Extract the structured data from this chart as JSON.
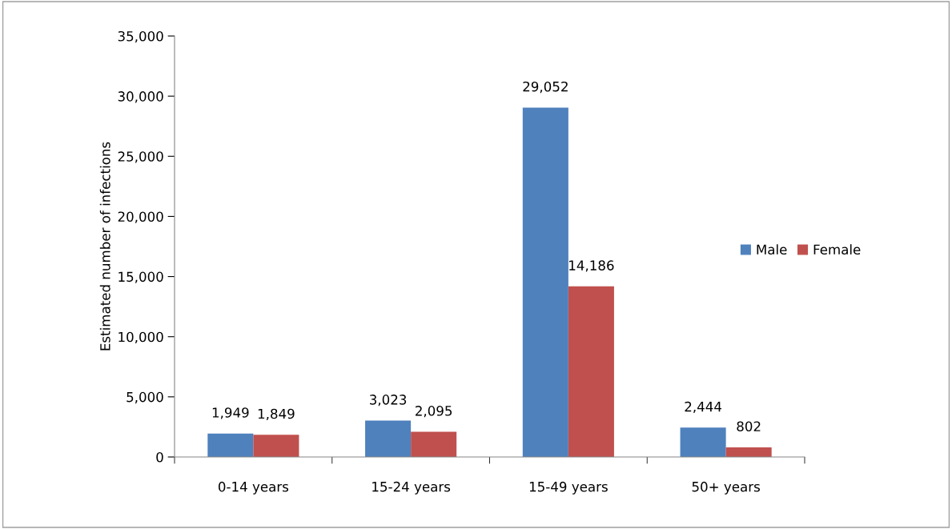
{
  "chart_data": {
    "type": "bar",
    "ylabel": "Estimated number of infections",
    "categories": [
      "0-14 years",
      "15-24 years",
      "15-49 years",
      "50+ years"
    ],
    "series": [
      {
        "name": "Male",
        "color": "#4f81bd",
        "values": [
          1949,
          3023,
          29052,
          2444
        ],
        "value_labels": [
          "1,949",
          "3,023",
          "29,052",
          "2,444"
        ]
      },
      {
        "name": "Female",
        "color": "#c0504d",
        "values": [
          1849,
          2095,
          14186,
          802
        ],
        "value_labels": [
          "1,849",
          "2,095",
          "14,186",
          "802"
        ]
      }
    ],
    "ylim": [
      0,
      35000
    ],
    "yticks": [
      0,
      {
        "value": 5000,
        "label": "5,000"
      },
      {
        "value": 10000,
        "label": "10,000"
      },
      {
        "value": 15000,
        "label": "15,000"
      },
      {
        "value": 20000,
        "label": "20,000"
      },
      {
        "value": 25000,
        "label": "25,000"
      },
      {
        "value": 30000,
        "label": "30,000"
      },
      {
        "value": 35000,
        "label": "35,000"
      }
    ],
    "legend": "right",
    "grid": false
  }
}
